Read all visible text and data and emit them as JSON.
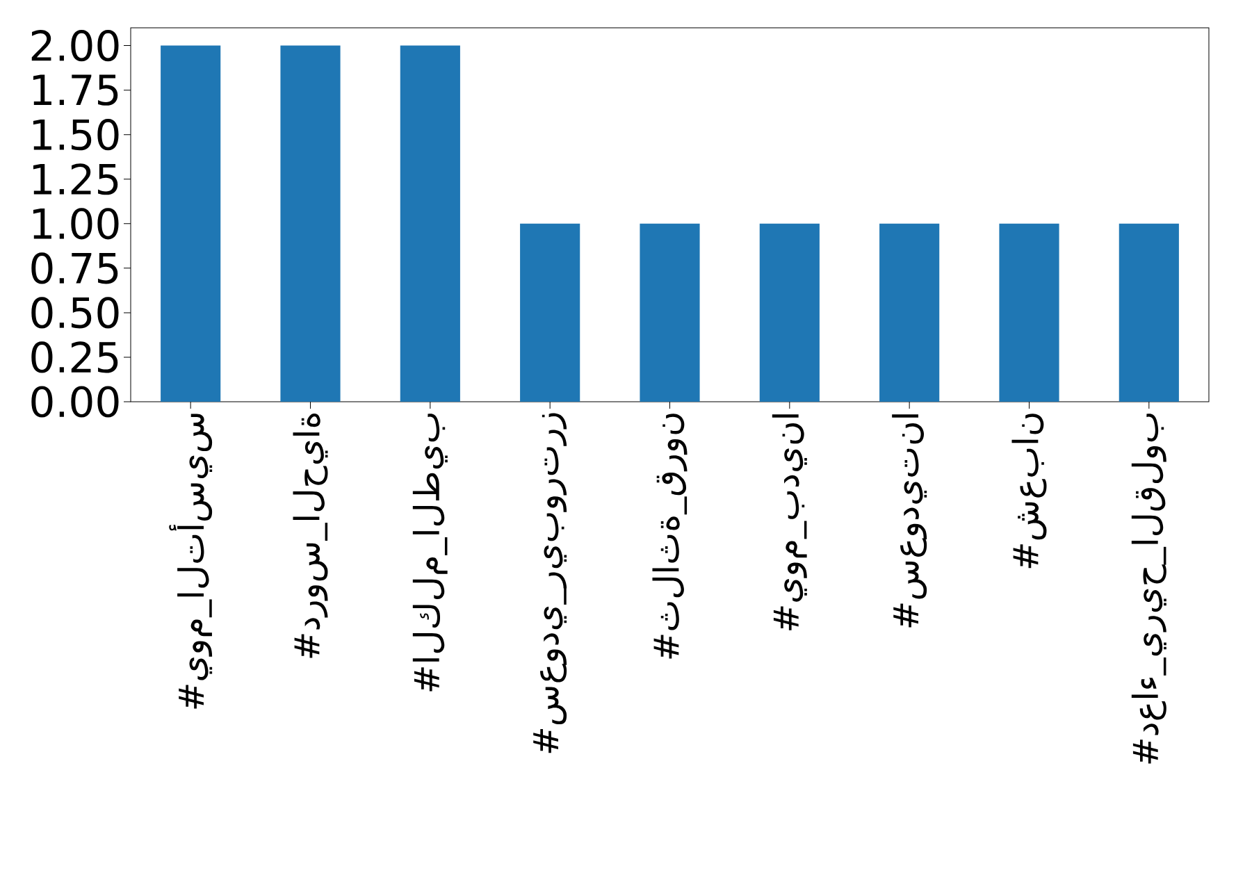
{
  "chart_data": {
    "type": "bar",
    "categories": [
      "#يوم_التأسيس",
      "#دروس_الحياة",
      "#الكلم_الطيب",
      "#سعودي_ريبورترز",
      "#ثلاثة_قرون",
      "#يوم_بدينا",
      "#سعوديتنا",
      "#شعبان",
      "#دعاء_يريح_القلوب"
    ],
    "values": [
      2,
      2,
      2,
      1,
      1,
      1,
      1,
      1,
      1
    ],
    "color": "#1f77b4",
    "ylim": [
      0,
      2.1
    ],
    "yticks": [
      {
        "value": 0,
        "label": "0.00"
      },
      {
        "value": 0.25,
        "label": "0.25"
      },
      {
        "value": 0.5,
        "label": "0.50"
      },
      {
        "value": 0.75,
        "label": "0.75"
      },
      {
        "value": 1,
        "label": "1.00"
      },
      {
        "value": 1.25,
        "label": "1.25"
      },
      {
        "value": 1.5,
        "label": "1.50"
      },
      {
        "value": 1.75,
        "label": "1.75"
      },
      {
        "value": 2,
        "label": "2.00"
      }
    ]
  }
}
